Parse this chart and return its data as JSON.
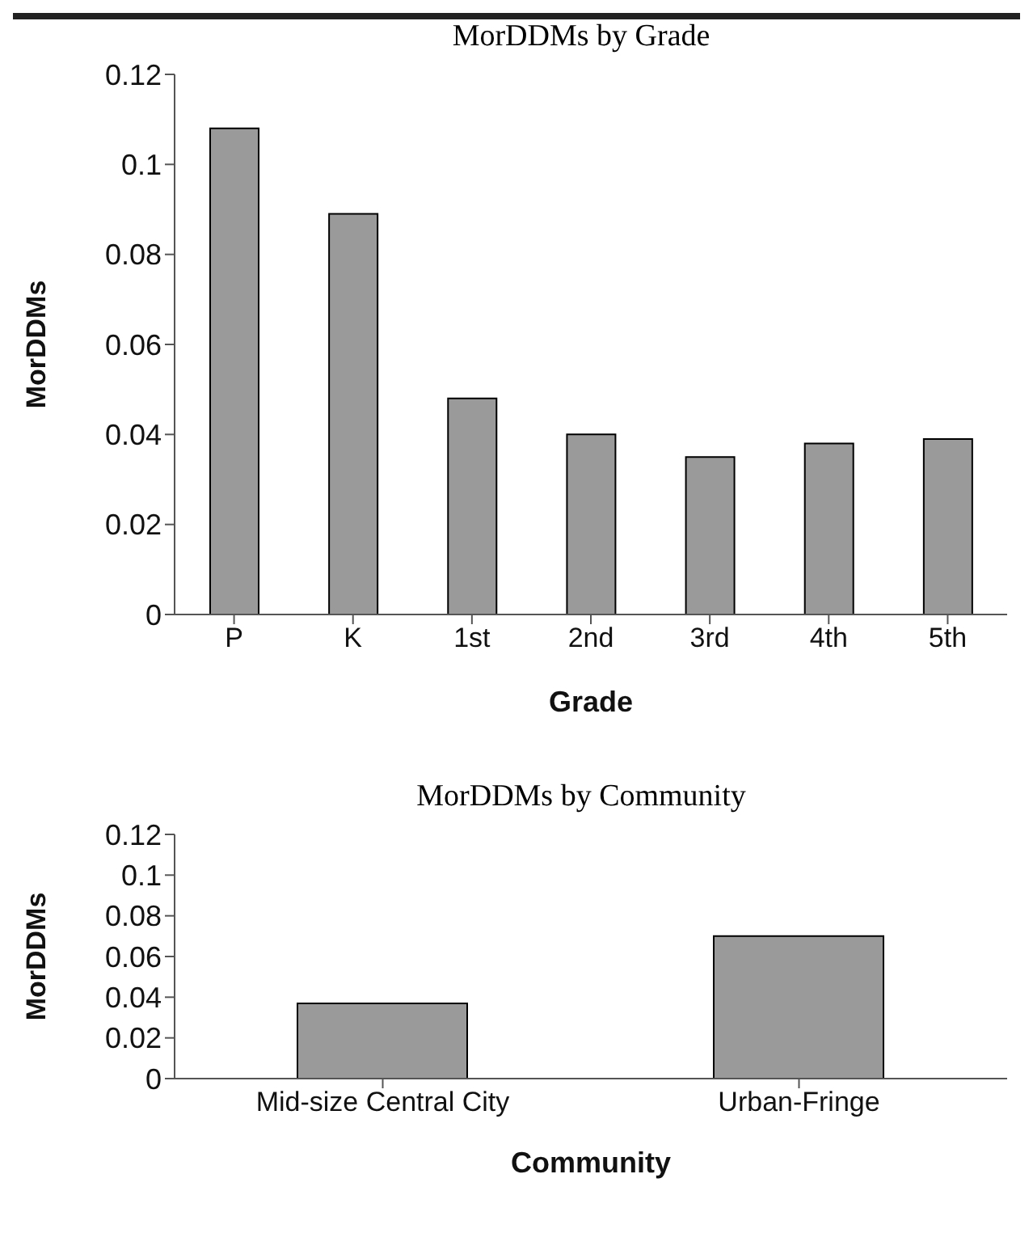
{
  "chart_data": [
    {
      "type": "bar",
      "title": "MorDDMs by Grade",
      "xlabel": "Grade",
      "ylabel": "MorDDMs",
      "categories": [
        "P",
        "K",
        "1st",
        "2nd",
        "3rd",
        "4th",
        "5th"
      ],
      "values": [
        0.108,
        0.089,
        0.048,
        0.04,
        0.035,
        0.038,
        0.039
      ],
      "color": "#9a9a9a",
      "ylim": [
        0,
        0.12
      ],
      "yticks": [
        0,
        0.02,
        0.04,
        0.06,
        0.08,
        0.1,
        0.12
      ],
      "grid": false,
      "legend": false
    },
    {
      "type": "bar",
      "title": "MorDDMs by Community",
      "xlabel": "Community",
      "ylabel": "MorDDMs",
      "categories": [
        "Mid-size Central City",
        "Urban-Fringe"
      ],
      "values": [
        0.037,
        0.07
      ],
      "color": "#9a9a9a",
      "ylim": [
        0,
        0.12
      ],
      "yticks": [
        0,
        0.02,
        0.04,
        0.06,
        0.08,
        0.1,
        0.12
      ],
      "grid": false,
      "legend": false
    }
  ]
}
